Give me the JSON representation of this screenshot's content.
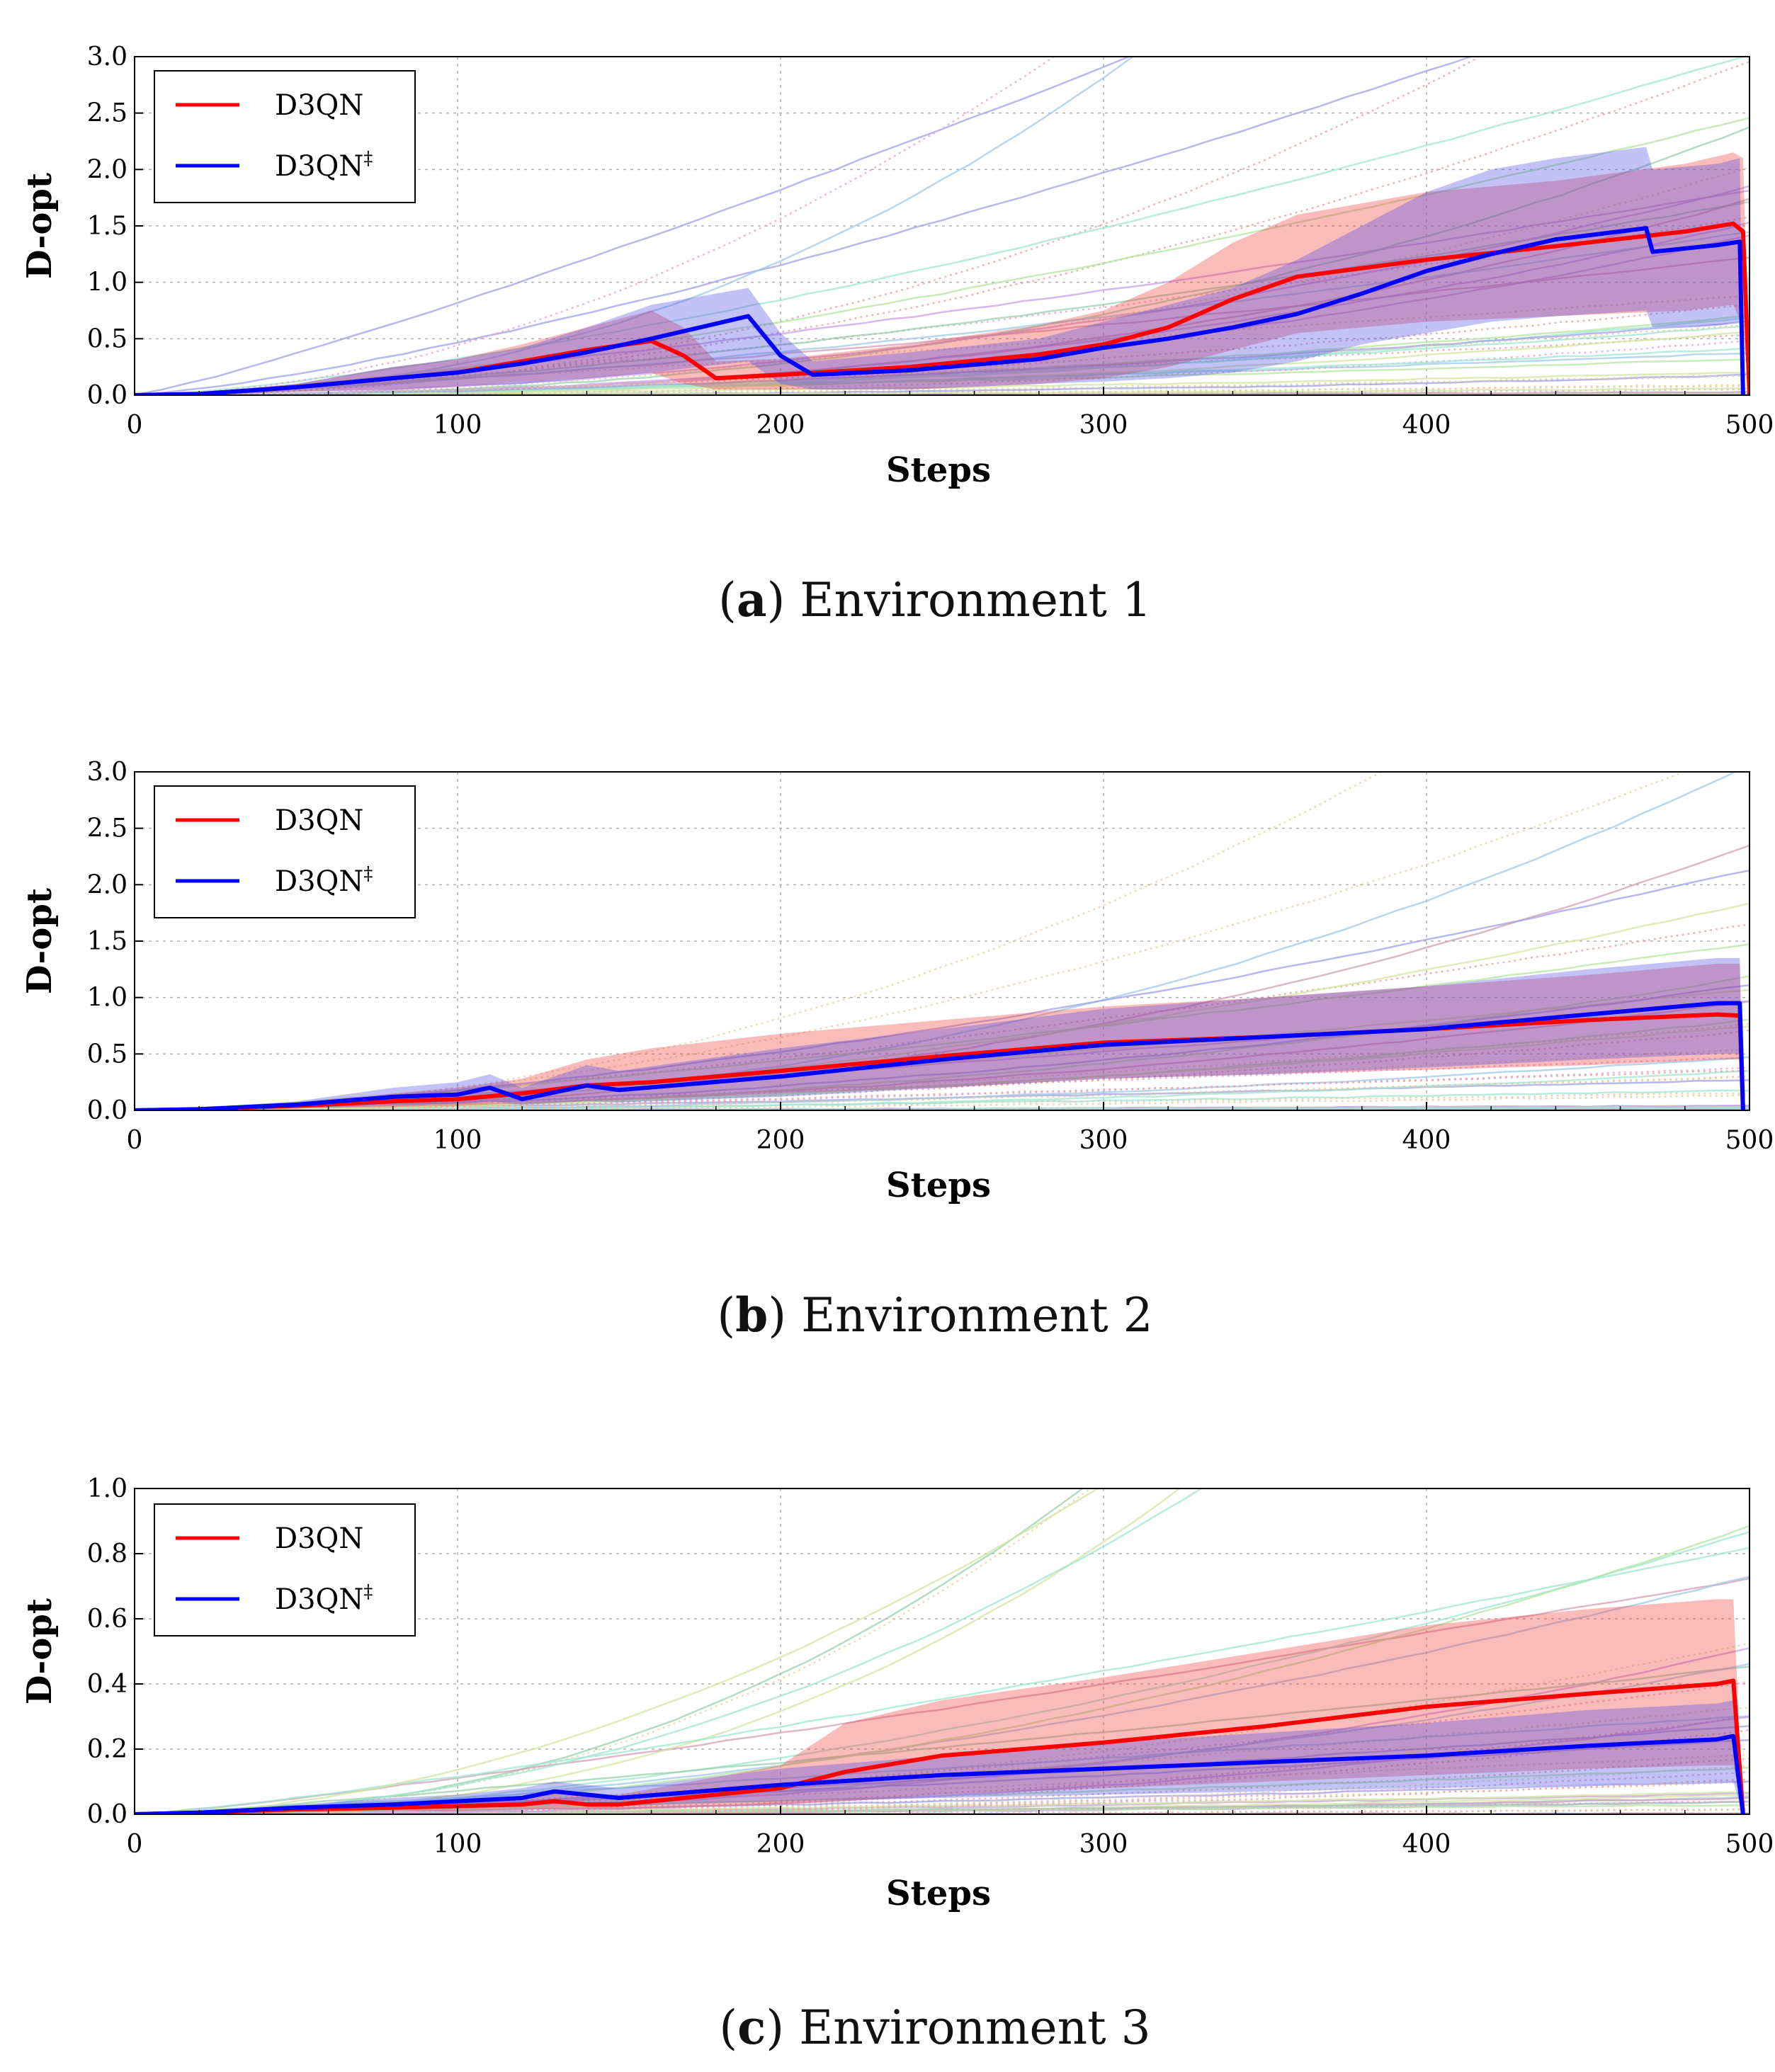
{
  "chart_data": [
    {
      "type": "line",
      "caption": {
        "letter": "a",
        "text": "Environment 1"
      },
      "xlabel": "Steps",
      "ylabel": "D-opt",
      "xlim": [
        0,
        500
      ],
      "ylim": [
        0,
        3.0
      ],
      "xticks": [
        "0",
        "100",
        "200",
        "300",
        "400",
        "500"
      ],
      "yticks": [
        "0.0",
        "0.5",
        "1.0",
        "1.5",
        "2.0",
        "2.5",
        "3.0"
      ],
      "grid": true,
      "legend_position": "top-left",
      "legend": [
        {
          "label": "D3QN",
          "sup": "",
          "color": "#ff0000"
        },
        {
          "label": "D3QN",
          "sup": "‡",
          "color": "#0000ff"
        }
      ],
      "series": [
        {
          "name": "D3QN",
          "color": "#ff0000",
          "x": [
            0,
            20,
            50,
            80,
            100,
            120,
            140,
            160,
            170,
            180,
            200,
            240,
            280,
            300,
            320,
            340,
            360,
            400,
            440,
            480,
            495,
            498,
            500
          ],
          "y": [
            0,
            0.01,
            0.07,
            0.15,
            0.2,
            0.3,
            0.4,
            0.48,
            0.35,
            0.15,
            0.18,
            0.25,
            0.36,
            0.45,
            0.6,
            0.85,
            1.05,
            1.2,
            1.32,
            1.45,
            1.52,
            1.45,
            0
          ],
          "band_lower": [
            0,
            0.0,
            0.03,
            0.05,
            0.08,
            0.12,
            0.15,
            0.2,
            0.1,
            0.05,
            0.05,
            0.05,
            0.1,
            0.15,
            0.25,
            0.4,
            0.55,
            0.65,
            0.7,
            0.75,
            0.8,
            0.6,
            0
          ],
          "band_upper": [
            0,
            0.02,
            0.1,
            0.25,
            0.32,
            0.45,
            0.6,
            0.75,
            0.6,
            0.3,
            0.32,
            0.45,
            0.62,
            0.75,
            1.0,
            1.35,
            1.6,
            1.8,
            1.9,
            2.05,
            2.15,
            2.1,
            0
          ]
        },
        {
          "name": "D3QN‡",
          "color": "#0000ff",
          "x": [
            0,
            20,
            50,
            80,
            100,
            120,
            140,
            160,
            190,
            200,
            210,
            240,
            280,
            300,
            320,
            340,
            360,
            380,
            400,
            420,
            440,
            468,
            470,
            490,
            497,
            498
          ],
          "y": [
            0,
            0.01,
            0.07,
            0.15,
            0.2,
            0.28,
            0.38,
            0.5,
            0.7,
            0.35,
            0.18,
            0.22,
            0.32,
            0.42,
            0.5,
            0.6,
            0.72,
            0.9,
            1.1,
            1.25,
            1.38,
            1.48,
            1.27,
            1.33,
            1.36,
            0
          ],
          "band_lower": [
            0,
            0.0,
            0.03,
            0.05,
            0.08,
            0.1,
            0.15,
            0.2,
            0.3,
            0.1,
            0.05,
            0.05,
            0.1,
            0.12,
            0.15,
            0.2,
            0.3,
            0.45,
            0.55,
            0.65,
            0.7,
            0.75,
            0.6,
            0.62,
            0.65,
            0
          ],
          "band_upper": [
            0,
            0.02,
            0.1,
            0.25,
            0.32,
            0.42,
            0.6,
            0.8,
            0.95,
            0.55,
            0.3,
            0.38,
            0.5,
            0.65,
            0.8,
            0.95,
            1.2,
            1.5,
            1.8,
            2.0,
            2.1,
            2.2,
            2.0,
            2.05,
            2.1,
            0
          ]
        }
      ]
    },
    {
      "type": "line",
      "caption": {
        "letter": "b",
        "text": "Environment 2"
      },
      "xlabel": "Steps",
      "ylabel": "D-opt",
      "xlim": [
        0,
        500
      ],
      "ylim": [
        0,
        3.0
      ],
      "xticks": [
        "0",
        "100",
        "200",
        "300",
        "400",
        "500"
      ],
      "yticks": [
        "0.0",
        "0.5",
        "1.0",
        "1.5",
        "2.0",
        "2.5",
        "3.0"
      ],
      "grid": true,
      "legend_position": "top-left",
      "legend": [
        {
          "label": "D3QN",
          "sup": "",
          "color": "#ff0000"
        },
        {
          "label": "D3QN",
          "sup": "‡",
          "color": "#0000ff"
        }
      ],
      "series": [
        {
          "name": "D3QN",
          "color": "#ff0000",
          "x": [
            0,
            20,
            50,
            80,
            100,
            120,
            140,
            160,
            200,
            250,
            300,
            350,
            400,
            450,
            490,
            497,
            498
          ],
          "y": [
            0,
            0.01,
            0.04,
            0.08,
            0.1,
            0.15,
            0.22,
            0.25,
            0.35,
            0.48,
            0.6,
            0.65,
            0.72,
            0.8,
            0.85,
            0.84,
            0
          ],
          "band_lower": [
            0,
            0.0,
            0.02,
            0.03,
            0.04,
            0.06,
            0.08,
            0.1,
            0.15,
            0.2,
            0.28,
            0.32,
            0.36,
            0.4,
            0.45,
            0.45,
            0
          ],
          "band_upper": [
            0,
            0.02,
            0.07,
            0.15,
            0.2,
            0.28,
            0.45,
            0.55,
            0.68,
            0.8,
            0.92,
            1.0,
            1.1,
            1.2,
            1.3,
            1.3,
            0
          ]
        },
        {
          "name": "D3QN‡",
          "color": "#0000ff",
          "x": [
            0,
            20,
            50,
            80,
            100,
            110,
            120,
            140,
            150,
            200,
            250,
            300,
            350,
            400,
            450,
            490,
            497,
            498
          ],
          "y": [
            0,
            0.01,
            0.05,
            0.12,
            0.14,
            0.2,
            0.1,
            0.22,
            0.18,
            0.3,
            0.45,
            0.58,
            0.65,
            0.72,
            0.85,
            0.95,
            0.95,
            0
          ],
          "band_lower": [
            0,
            0.0,
            0.02,
            0.05,
            0.06,
            0.08,
            0.05,
            0.08,
            0.07,
            0.12,
            0.2,
            0.28,
            0.32,
            0.38,
            0.45,
            0.5,
            0.5,
            0
          ],
          "band_upper": [
            0,
            0.02,
            0.08,
            0.2,
            0.25,
            0.32,
            0.2,
            0.4,
            0.35,
            0.55,
            0.72,
            0.9,
            1.0,
            1.1,
            1.25,
            1.35,
            1.35,
            0
          ]
        }
      ]
    },
    {
      "type": "line",
      "caption": {
        "letter": "c",
        "text": "Environment 3"
      },
      "xlabel": "Steps",
      "ylabel": "D-opt",
      "xlim": [
        0,
        500
      ],
      "ylim": [
        0,
        1.0
      ],
      "xticks": [
        "0",
        "100",
        "200",
        "300",
        "400",
        "500"
      ],
      "yticks": [
        "0.0",
        "0.2",
        "0.4",
        "0.6",
        "0.8",
        "1.0"
      ],
      "grid": true,
      "legend_position": "top-left",
      "legend": [
        {
          "label": "D3QN",
          "sup": "",
          "color": "#ff0000"
        },
        {
          "label": "D3QN",
          "sup": "‡",
          "color": "#0000ff"
        }
      ],
      "series": [
        {
          "name": "D3QN",
          "color": "#ff0000",
          "x": [
            0,
            20,
            50,
            80,
            100,
            120,
            130,
            140,
            150,
            200,
            220,
            250,
            300,
            350,
            400,
            450,
            490,
            495,
            498
          ],
          "y": [
            0,
            0.005,
            0.015,
            0.02,
            0.025,
            0.03,
            0.04,
            0.03,
            0.03,
            0.08,
            0.13,
            0.18,
            0.22,
            0.27,
            0.33,
            0.37,
            0.4,
            0.41,
            0
          ],
          "band_lower": [
            0,
            0.0,
            0.005,
            0.01,
            0.01,
            0.015,
            0.015,
            0.015,
            0.015,
            0.03,
            0.04,
            0.06,
            0.08,
            0.1,
            0.12,
            0.14,
            0.15,
            0.15,
            0
          ],
          "band_upper": [
            0,
            0.01,
            0.025,
            0.035,
            0.045,
            0.05,
            0.07,
            0.06,
            0.06,
            0.15,
            0.28,
            0.35,
            0.42,
            0.5,
            0.58,
            0.63,
            0.66,
            0.66,
            0
          ]
        },
        {
          "name": "D3QN‡",
          "color": "#0000ff",
          "x": [
            0,
            20,
            50,
            80,
            100,
            120,
            130,
            140,
            150,
            200,
            250,
            300,
            350,
            400,
            450,
            490,
            495,
            498
          ],
          "y": [
            0,
            0.005,
            0.02,
            0.03,
            0.04,
            0.05,
            0.07,
            0.06,
            0.05,
            0.09,
            0.12,
            0.14,
            0.16,
            0.18,
            0.21,
            0.23,
            0.24,
            0
          ],
          "band_lower": [
            0,
            0.0,
            0.01,
            0.015,
            0.02,
            0.025,
            0.03,
            0.03,
            0.025,
            0.04,
            0.05,
            0.06,
            0.07,
            0.08,
            0.09,
            0.1,
            0.1,
            0
          ],
          "band_upper": [
            0,
            0.01,
            0.03,
            0.05,
            0.06,
            0.08,
            0.1,
            0.09,
            0.08,
            0.14,
            0.18,
            0.22,
            0.25,
            0.28,
            0.32,
            0.34,
            0.35,
            0
          ]
        }
      ]
    }
  ]
}
